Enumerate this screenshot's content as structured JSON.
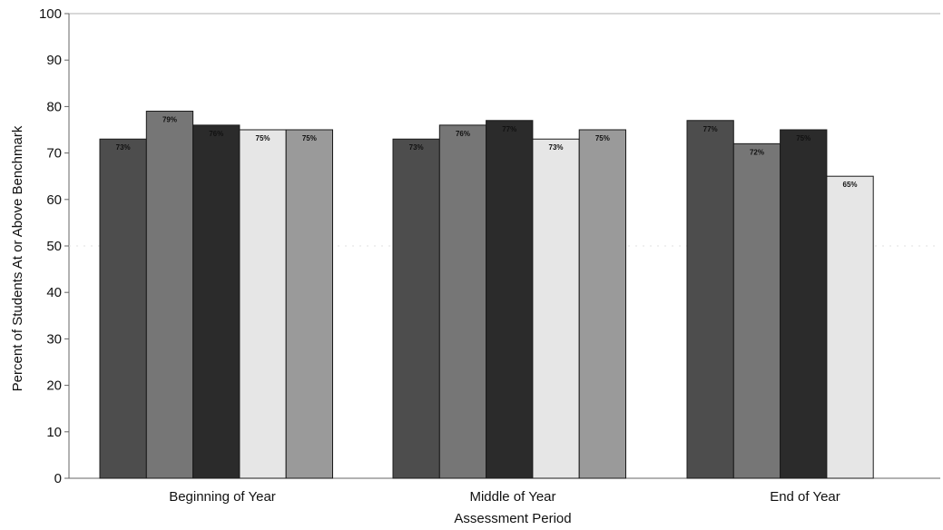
{
  "chart_data": {
    "type": "bar",
    "title": "",
    "xlabel": "Assessment Period",
    "ylabel": "Percent of Students At or Above Benchmark",
    "ylim": [
      0,
      100
    ],
    "yticks": [
      0,
      10,
      20,
      30,
      40,
      50,
      60,
      70,
      80,
      90,
      100
    ],
    "categories": [
      "Beginning of Year",
      "Middle of Year",
      "End of Year"
    ],
    "series": [
      {
        "values": [
          73,
          73,
          77
        ],
        "labels": [
          "73%",
          "73%",
          "77%"
        ],
        "color": "#4d4d4d"
      },
      {
        "values": [
          79,
          76,
          72
        ],
        "labels": [
          "79%",
          "76%",
          "72%"
        ],
        "color": "#767676"
      },
      {
        "values": [
          76,
          77,
          75
        ],
        "labels": [
          "76%",
          "77%",
          "75%"
        ],
        "color": "#2b2b2b"
      },
      {
        "values": [
          75,
          73,
          65
        ],
        "labels": [
          "75%",
          "73%",
          "65%"
        ],
        "color": "#e6e6e6"
      },
      {
        "values": [
          75,
          75,
          null
        ],
        "labels": [
          "75%",
          "75%",
          ""
        ],
        "color": "#9a9a9a"
      }
    ],
    "grid": false,
    "legend": "none"
  }
}
